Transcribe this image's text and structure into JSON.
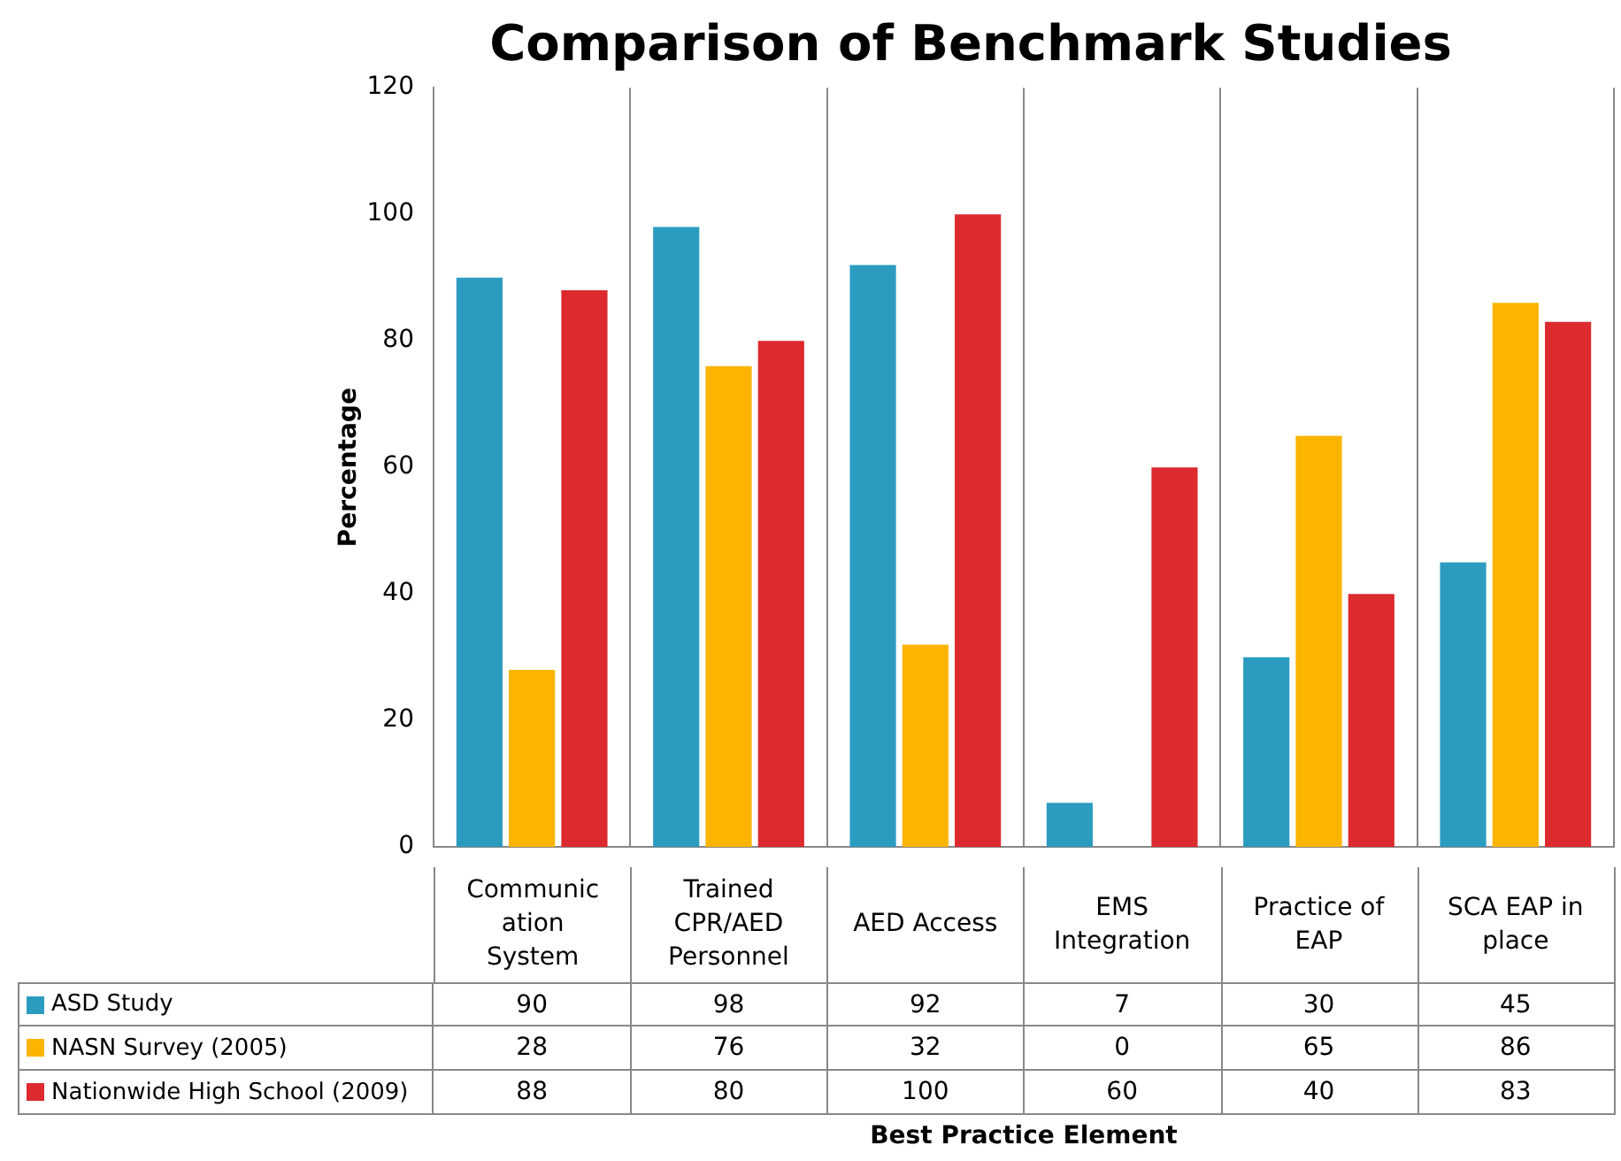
{
  "chart_data": {
    "type": "bar",
    "title": "Comparison of Benchmark Studies",
    "annotations": [
      "Best Practice Element"
    ],
    "ylabel": "Percentage",
    "categories": [
      "Communication System",
      "Trained CPR/AED Personnel",
      "AED Access",
      "EMS Integration",
      "Practice of EAP",
      "SCA EAP in place"
    ],
    "series": [
      {
        "name": "ASD Study",
        "color": "#2b9cc0",
        "values": [
          90,
          98,
          92,
          7,
          30,
          45
        ]
      },
      {
        "name": "NASN Survey (2005)",
        "color": "#fbb400",
        "values": [
          28,
          76,
          32,
          0,
          65,
          86
        ]
      },
      {
        "name": "Nationwide High School (2009)",
        "color": "#dc2a2e",
        "values": [
          88,
          80,
          100,
          60,
          40,
          83
        ]
      }
    ],
    "ylim": [
      0,
      120
    ],
    "yticks": [
      0,
      20,
      40,
      60,
      80,
      100,
      120
    ],
    "grid": "x",
    "legend": "bottom",
    "data_labels": true
  }
}
